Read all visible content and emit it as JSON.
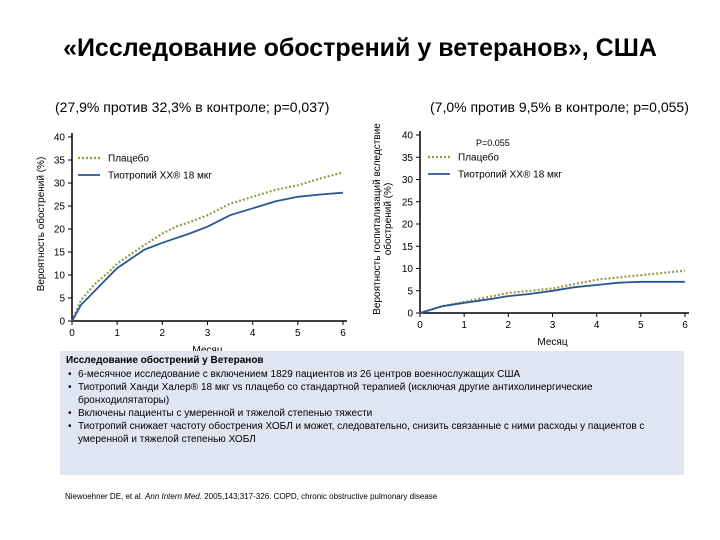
{
  "title": "«Исследование обострений у ветеранов», США",
  "chart_data": [
    {
      "type": "line",
      "subtitle": "(27,9% против 32,3% в контроле; p=0,037)",
      "ylabel": "Вероятность обострений (%)",
      "xlabel": "Месяц",
      "xlim": [
        0,
        6
      ],
      "ylim": [
        0,
        40
      ],
      "xticks": [
        "0",
        "1",
        "2",
        "3",
        "4",
        "5",
        "6"
      ],
      "yticks": [
        "0",
        "5",
        "10",
        "15",
        "20",
        "25",
        "30",
        "35",
        "40"
      ],
      "annotation": "",
      "legend_position": "top-left",
      "series": [
        {
          "name": "Плацебо",
          "style": "dotted",
          "color": "#9a9a4a",
          "points": [
            [
              0,
              0
            ],
            [
              0.2,
              4.5
            ],
            [
              0.5,
              8
            ],
            [
              0.8,
              10.5
            ],
            [
              1.0,
              12.5
            ],
            [
              1.3,
              14.5
            ],
            [
              1.6,
              16.5
            ],
            [
              2.0,
              19
            ],
            [
              2.3,
              20.5
            ],
            [
              2.6,
              21.5
            ],
            [
              3.0,
              23
            ],
            [
              3.5,
              25.5
            ],
            [
              4.0,
              27
            ],
            [
              4.5,
              28.5
            ],
            [
              5.0,
              29.5
            ],
            [
              5.5,
              31
            ],
            [
              6.0,
              32.3
            ]
          ]
        },
        {
          "name": "Тиотропий ХХ® 18 мкг",
          "style": "solid",
          "color": "#2a5694",
          "points": [
            [
              0,
              0
            ],
            [
              0.2,
              3.5
            ],
            [
              0.5,
              6.5
            ],
            [
              0.8,
              9.5
            ],
            [
              1.0,
              11.5
            ],
            [
              1.3,
              13.5
            ],
            [
              1.6,
              15.5
            ],
            [
              2.0,
              17
            ],
            [
              2.3,
              18
            ],
            [
              2.6,
              19
            ],
            [
              3.0,
              20.5
            ],
            [
              3.5,
              23
            ],
            [
              4.0,
              24.5
            ],
            [
              4.5,
              26
            ],
            [
              5.0,
              27
            ],
            [
              5.5,
              27.5
            ],
            [
              6.0,
              27.9
            ]
          ]
        }
      ]
    },
    {
      "type": "line",
      "subtitle": "(7,0% против 9,5% в контроле; p=0,055)",
      "ylabel": "Вероятность госпитализаций вследствие обострений (%)",
      "ylabel_lines": [
        "Вероятность госпитализаций вследствие",
        "обострений (%)"
      ],
      "xlabel": "Месяц",
      "xlim": [
        0,
        6
      ],
      "ylim": [
        0,
        40
      ],
      "xticks": [
        "0",
        "1",
        "2",
        "3",
        "4",
        "5",
        "6"
      ],
      "yticks": [
        "0",
        "5",
        "10",
        "15",
        "20",
        "25",
        "30",
        "35",
        "40"
      ],
      "annotation": "P=0.055",
      "legend_position": "top-left",
      "series": [
        {
          "name": "Плацебо",
          "style": "dotted",
          "color": "#9a9a4a",
          "points": [
            [
              0,
              0
            ],
            [
              0.5,
              1.5
            ],
            [
              1.0,
              2.5
            ],
            [
              1.5,
              3.5
            ],
            [
              2.0,
              4.5
            ],
            [
              2.5,
              5
            ],
            [
              3.0,
              5.5
            ],
            [
              3.5,
              6.5
            ],
            [
              4.0,
              7.5
            ],
            [
              4.5,
              8
            ],
            [
              5.0,
              8.5
            ],
            [
              5.5,
              9
            ],
            [
              6.0,
              9.5
            ]
          ]
        },
        {
          "name": "Тиотропий ХХ® 18 мкг",
          "style": "solid",
          "color": "#2a5694",
          "points": [
            [
              0,
              0
            ],
            [
              0.5,
              1.5
            ],
            [
              1.0,
              2.3
            ],
            [
              1.5,
              3
            ],
            [
              2.0,
              3.8
            ],
            [
              2.5,
              4.3
            ],
            [
              3.0,
              5
            ],
            [
              3.5,
              5.8
            ],
            [
              4.0,
              6.3
            ],
            [
              4.5,
              6.8
            ],
            [
              5.0,
              7
            ],
            [
              5.5,
              7
            ],
            [
              6.0,
              7
            ]
          ]
        }
      ]
    }
  ],
  "info": {
    "heading": "Исследование обострений у Ветеранов",
    "bullets": [
      "6-месячное исследование с включением 1829 пациентов из 26 центров военнослужащих США",
      "Тиотропий Ханди Халер® 18 мкг vs плацебо со стандартной терапией (исключая другие антихолинергические бронходилятаторы)",
      "Включены пациенты с умеренной и тяжелой степенью тяжести",
      "Тиотропий снижает частоту обострения ХОБЛ и может, следовательно, снизить связанные с ними расходы у пациентов с умеренной и тяжелой степенью ХОБЛ"
    ]
  },
  "reference": {
    "authors": "Niewoehner DE, et al. ",
    "journal": "Ann Intern Med.",
    "rest": " 2005,143;317-326.  COPD, chronic obstructive pulmonary disease"
  }
}
